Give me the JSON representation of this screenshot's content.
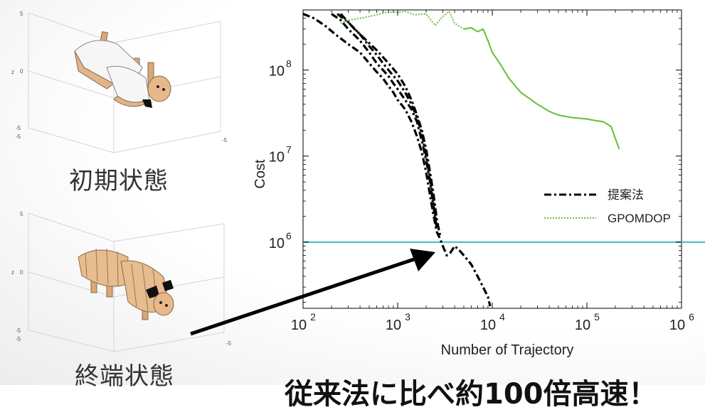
{
  "captions": {
    "initial": "初期状態",
    "final": "終端状態"
  },
  "mini_axes": {
    "tick5": "5",
    "tick0": "0",
    "tickm5": "-5",
    "zlabel": "z"
  },
  "bottom_text": "従来法に比べ約100倍高速！",
  "chart_data": {
    "type": "line",
    "xlabel": "Number of Trajectory",
    "ylabel": "Cost",
    "xscale": "log",
    "yscale": "log",
    "xlim": [
      100,
      1000000
    ],
    "ylim": [
      170000,
      500000000
    ],
    "x_ticks": [
      {
        "base": "10",
        "exp": "2"
      },
      {
        "base": "10",
        "exp": "3"
      },
      {
        "base": "10",
        "exp": "4"
      },
      {
        "base": "10",
        "exp": "5"
      },
      {
        "base": "10",
        "exp": "6"
      }
    ],
    "y_ticks": [
      {
        "base": "10",
        "exp": "6",
        "value": 1000000
      },
      {
        "base": "10",
        "exp": "7",
        "value": 10000000
      },
      {
        "base": "10",
        "exp": "8",
        "value": 100000000
      }
    ],
    "threshold": {
      "value": 1000000,
      "color": "#5ec4c8"
    },
    "legend_position": "right",
    "series": [
      {
        "name": "提案法",
        "style": "dash-dot",
        "color": "#000000",
        "runs": [
          {
            "x": [
              100,
              130,
              170,
              220,
              300,
              400,
              500,
              600,
              700,
              800,
              900,
              1000,
              1200,
              1400,
              1600,
              1800,
              2000,
              2200,
              2400,
              2600,
              2800,
              3000,
              3300,
              3600,
              4000,
              4500,
              5000,
              6000,
              7000,
              8000,
              9000,
              9500
            ],
            "y": [
              450000000,
              400000000,
              330000000,
              260000000,
              200000000,
              160000000,
              120000000,
              95000000,
              80000000,
              65000000,
              55000000,
              45000000,
              35000000,
              25000000,
              17000000,
              11000000,
              6500000,
              3500000,
              2000000,
              1300000,
              1100000,
              900000,
              700000,
              750000,
              900000,
              800000,
              700000,
              550000,
              400000,
              300000,
              230000,
              180000
            ]
          },
          {
            "x": [
              200,
              250,
              300,
              400,
              500,
              600,
              700,
              800,
              900,
              1000,
              1200,
              1400,
              1600,
              1800,
              2000,
              2200,
              2400,
              2600
            ],
            "y": [
              450000000,
              380000000,
              300000000,
              220000000,
              160000000,
              120000000,
              100000000,
              85000000,
              70000000,
              60000000,
              45000000,
              35000000,
              25000000,
              15000000,
              9000000,
              5000000,
              2500000,
              1400000
            ]
          },
          {
            "x": [
              230,
              300,
              400,
              500,
              600,
              700,
              800,
              1000,
              1200,
              1400,
              1600,
              1800,
              2000,
              2200,
              2400,
              2600
            ],
            "y": [
              450000000,
              360000000,
              260000000,
              190000000,
              150000000,
              120000000,
              100000000,
              75000000,
              55000000,
              40000000,
              28000000,
              18000000,
              10000000,
              5500000,
              2800000,
              1500000
            ]
          },
          {
            "x": [
              250,
              350,
              450,
              600,
              800,
              1000,
              1200,
              1400,
              1600,
              1800,
              2000,
              2200,
              2400,
              2600,
              2800
            ],
            "y": [
              450000000,
              300000000,
              230000000,
              170000000,
              120000000,
              90000000,
              65000000,
              45000000,
              30000000,
              20000000,
              12000000,
              6500000,
              3500000,
              1800000,
              1200000
            ]
          }
        ]
      },
      {
        "name": "GPOMDOP",
        "style": "dotted",
        "color": "#6cbf3f",
        "runs": [
          {
            "x": [
              250,
              300,
              400,
              500,
              600,
              700,
              800,
              1000,
              1200,
              1500,
              2000,
              2500,
              3000,
              3500,
              4000,
              5000,
              6000,
              7000,
              8000,
              9000,
              10000,
              12000,
              15000,
              20000,
              30000,
              40000,
              50000,
              70000,
              100000,
              120000,
              150000,
              180000,
              200000,
              220000
            ],
            "y": [
              350000000,
              380000000,
              400000000,
              420000000,
              440000000,
              460000000,
              470000000,
              470000000,
              480000000,
              440000000,
              450000000,
              330000000,
              420000000,
              480000000,
              350000000,
              300000000,
              310000000,
              280000000,
              300000000,
              220000000,
              160000000,
              120000000,
              80000000,
              55000000,
              40000000,
              33000000,
              30000000,
              28000000,
              27000000,
              26000000,
              25000000,
              22000000,
              16000000,
              12000000
            ]
          }
        ]
      }
    ]
  }
}
